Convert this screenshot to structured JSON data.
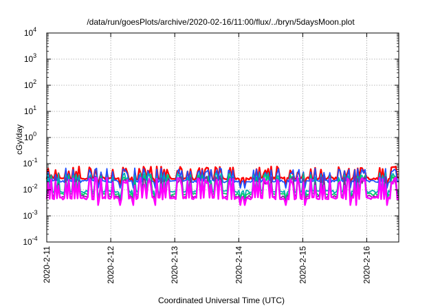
{
  "chart_data": {
    "type": "line",
    "title": "/data/run/goesPlots/archive/2020-02-16/11:00/flux/../bryn/5daysMoon.plot",
    "xlabel": "Coordinated Universal Time (UTC)",
    "ylabel": "cGy/day",
    "y_scale": "log",
    "ylim": [
      0.0001,
      10000
    ],
    "y_ticks": [
      {
        "value": 0.0001,
        "base": "10",
        "exp": "-4"
      },
      {
        "value": 0.001,
        "base": "10",
        "exp": "-3"
      },
      {
        "value": 0.01,
        "base": "10",
        "exp": "-2"
      },
      {
        "value": 0.1,
        "base": "10",
        "exp": "-1"
      },
      {
        "value": 1,
        "base": "10",
        "exp": "0"
      },
      {
        "value": 10,
        "base": "10",
        "exp": "1"
      },
      {
        "value": 100,
        "base": "10",
        "exp": "2"
      },
      {
        "value": 1000,
        "base": "10",
        "exp": "3"
      },
      {
        "value": 10000,
        "base": "10",
        "exp": "4"
      }
    ],
    "xlim": [
      "2020-02-11",
      "2020-02-16 12:00"
    ],
    "x_ticks": [
      "2020-2-11",
      "2020-2-12",
      "2020-2-13",
      "2020-2-14",
      "2020-2-15",
      "2020-2-16"
    ],
    "grid": true,
    "legend": "none",
    "series": [
      {
        "color": "#ff0000",
        "base": 0.027,
        "spike": 0.052,
        "seed": 11
      },
      {
        "color": "#1f4fff",
        "base": 0.021,
        "spike": 0.045,
        "seed": 23
      },
      {
        "color": "#00b0b0",
        "base": 0.0085,
        "spike": 0.03,
        "seed": 37
      },
      {
        "color": "#00cc66",
        "base": 0.0068,
        "spike": 0.025,
        "seed": 41
      },
      {
        "color": "#8a1fa0",
        "base": 0.0055,
        "spike": 0.022,
        "seed": 53
      },
      {
        "color": "#ff00ff",
        "base": 0.0047,
        "spike": 0.02,
        "seed": 67
      }
    ]
  }
}
